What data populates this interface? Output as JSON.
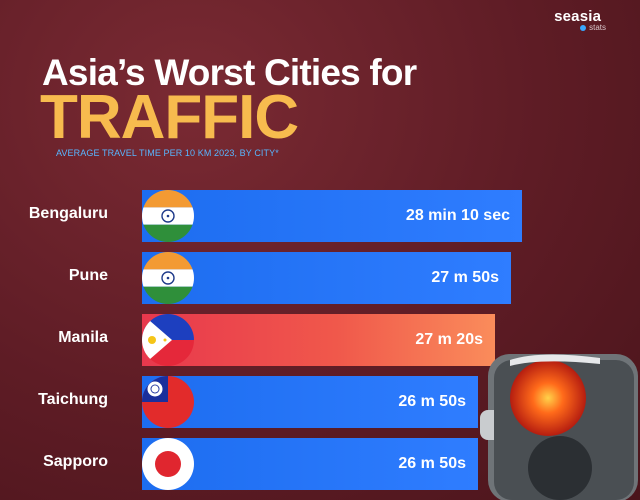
{
  "brand": {
    "name": "seasia",
    "sub": "stats"
  },
  "title_line1": "Asia’s Worst Cities for",
  "title_line2": "TRAFFIC",
  "subtitle": "AVERAGE TRAVEL TIME PER 10 KM 2023, BY CITY*",
  "colors": {
    "bar": "#2f7dff",
    "highlight": "#f0584b",
    "title_accent": "#f7bb4e",
    "subtitle": "#58b6ff"
  },
  "chart_data": {
    "type": "bar",
    "orientation": "horizontal",
    "title": "Asia’s Worst Cities for TRAFFIC",
    "subtitle": "AVERAGE TRAVEL TIME PER 10 KM 2023, BY CITY*",
    "categories": [
      "Bengaluru",
      "Pune",
      "Manila",
      "Taichung",
      "Sapporo"
    ],
    "values_seconds": [
      1690,
      1670,
      1640,
      1610,
      1610
    ],
    "value_labels": [
      "28 min 10 sec",
      "27 m 50s",
      "27 m 20s",
      "26 m 50s",
      "26 m 50s"
    ],
    "flags": [
      "india-flag-icon",
      "india-flag-icon",
      "philippines-flag-icon",
      "taiwan-flag-icon",
      "japan-flag-icon"
    ],
    "highlight": [
      "no",
      "no",
      "yes",
      "no",
      "no"
    ],
    "grid": "off",
    "legend": "none"
  }
}
